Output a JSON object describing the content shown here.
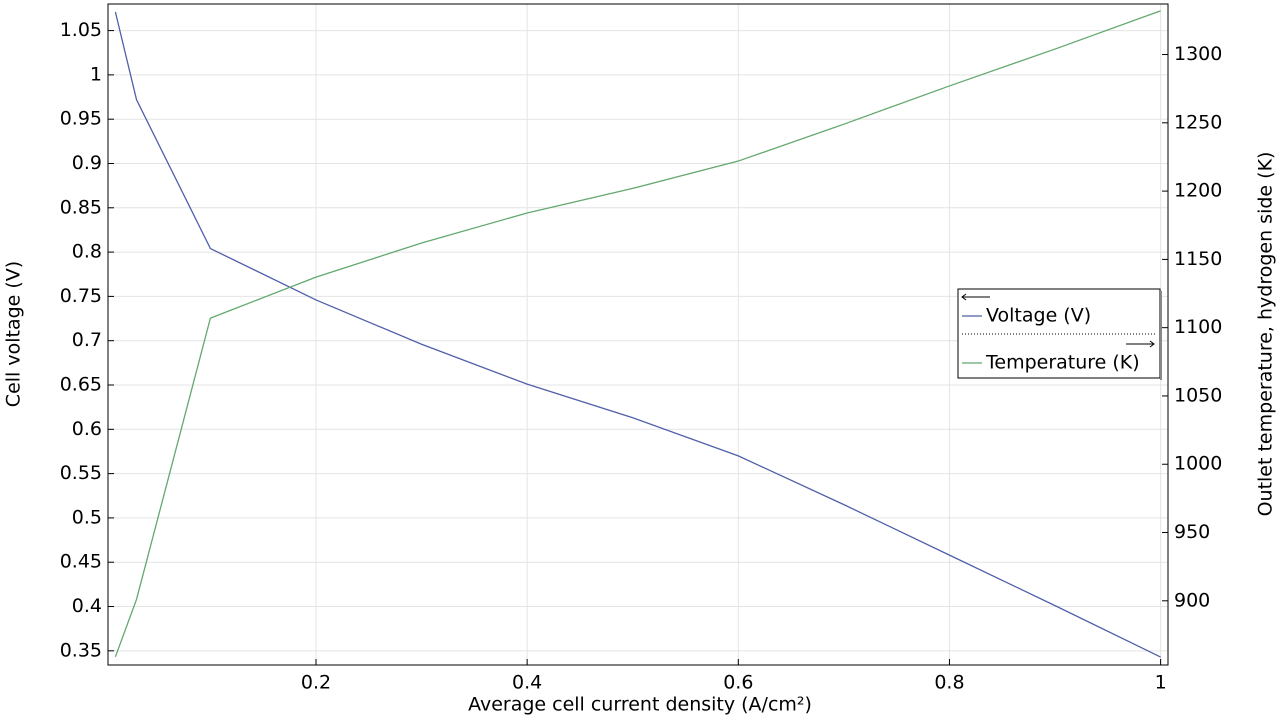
{
  "chart_data": {
    "type": "line",
    "x_label": "Average cell current density  (A/cm²)",
    "y_label": "Cell voltage (V)",
    "y2_label": "Outlet temperature, hydrogen side (K)",
    "x": [
      0.01,
      0.03,
      0.1,
      0.2,
      0.3,
      0.4,
      0.5,
      0.6,
      0.7,
      0.8,
      0.9,
      1
    ],
    "series": [
      {
        "name": "Voltage (V)",
        "color": "#4f5faa",
        "values": [
          1.071,
          0.972,
          0.804,
          0.746,
          0.696,
          0.651,
          0.613,
          0.57,
          0.515,
          0.458,
          0.401,
          0.343
        ]
      },
      {
        "name": "Temperature (K)",
        "color": "#63a86e",
        "axis": "y2",
        "values": [
          859,
          901,
          1107,
          1137,
          1162,
          1184,
          1202,
          1222,
          1249,
          1277,
          1304,
          1332
        ]
      }
    ],
    "xlim": [
      0.003,
      1.007
    ],
    "xticks": [
      0.2,
      0.4,
      0.6,
      0.8,
      1
    ],
    "ylim": [
      0.334,
      1.08
    ],
    "yticks": [
      0.35,
      0.4,
      0.45,
      0.5,
      0.55,
      0.6,
      0.65,
      0.7,
      0.75,
      0.8,
      0.85,
      0.9,
      0.95,
      1,
      1.05
    ],
    "y2lim": [
      853,
      1337
    ],
    "y2ticks": [
      900,
      950,
      1000,
      1050,
      1100,
      1150,
      1200,
      1250,
      1300
    ],
    "grid": true
  }
}
